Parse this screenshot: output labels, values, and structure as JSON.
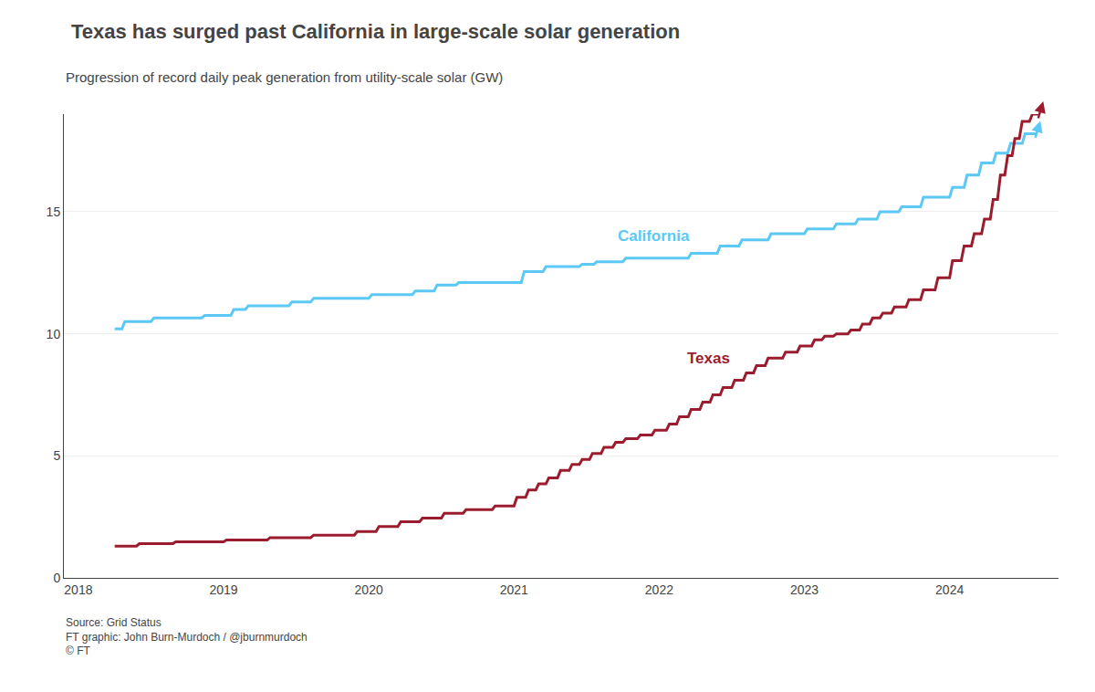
{
  "chart_data": {
    "type": "line",
    "title": "Texas has surged past California in large-scale solar generation",
    "subtitle": "Progression of record daily peak generation from utility-scale solar (GW)",
    "source": "Source: Grid Status\nFT graphic: John Burn-Murdoch / @jburnmurdoch\n© FT",
    "xlim": [
      2017.9,
      2024.75
    ],
    "xticks": [
      2018,
      2019,
      2020,
      2021,
      2022,
      2023,
      2024
    ],
    "ylim": [
      0,
      19
    ],
    "yticks": [
      0,
      5,
      10,
      15
    ],
    "grid": "y",
    "series": [
      {
        "name": "California",
        "color": "#5bc8f5",
        "x": [
          2018.25,
          2018.3,
          2018.32,
          2018.5,
          2018.52,
          2018.85,
          2018.87,
          2019.05,
          2019.07,
          2019.15,
          2019.17,
          2019.45,
          2019.47,
          2019.6,
          2019.62,
          2020.0,
          2020.02,
          2020.3,
          2020.32,
          2020.45,
          2020.47,
          2020.6,
          2020.62,
          2021.05,
          2021.07,
          2021.2,
          2021.22,
          2021.45,
          2021.47,
          2021.55,
          2021.57,
          2021.75,
          2021.77,
          2022.2,
          2022.22,
          2022.4,
          2022.42,
          2022.55,
          2022.57,
          2022.75,
          2022.77,
          2023.0,
          2023.02,
          2023.2,
          2023.22,
          2023.35,
          2023.37,
          2023.5,
          2023.52,
          2023.65,
          2023.67,
          2023.8,
          2023.82,
          2024.0,
          2024.02,
          2024.1,
          2024.12,
          2024.2,
          2024.22,
          2024.3,
          2024.32,
          2024.4,
          2024.42,
          2024.5,
          2024.52,
          2024.6
        ],
        "values": [
          10.2,
          10.2,
          10.5,
          10.5,
          10.65,
          10.65,
          10.75,
          10.75,
          11.0,
          11.0,
          11.15,
          11.15,
          11.3,
          11.3,
          11.45,
          11.45,
          11.6,
          11.6,
          11.75,
          11.75,
          12.0,
          12.0,
          12.1,
          12.1,
          12.55,
          12.55,
          12.75,
          12.75,
          12.85,
          12.85,
          12.95,
          12.95,
          13.1,
          13.1,
          13.3,
          13.3,
          13.6,
          13.6,
          13.85,
          13.85,
          14.1,
          14.1,
          14.3,
          14.3,
          14.5,
          14.5,
          14.7,
          14.7,
          15.0,
          15.0,
          15.2,
          15.2,
          15.6,
          15.6,
          16.0,
          16.0,
          16.5,
          16.5,
          17.0,
          17.0,
          17.4,
          17.4,
          17.8,
          17.8,
          18.2,
          18.2
        ]
      },
      {
        "name": "Texas",
        "color": "#9b1c2e",
        "x": [
          2018.25,
          2018.4,
          2018.42,
          2018.65,
          2018.67,
          2019.0,
          2019.02,
          2019.3,
          2019.32,
          2019.6,
          2019.62,
          2019.9,
          2019.92,
          2020.05,
          2020.07,
          2020.2,
          2020.22,
          2020.35,
          2020.37,
          2020.5,
          2020.52,
          2020.65,
          2020.67,
          2020.85,
          2020.87,
          2021.0,
          2021.02,
          2021.08,
          2021.1,
          2021.15,
          2021.17,
          2021.22,
          2021.24,
          2021.3,
          2021.32,
          2021.38,
          2021.4,
          2021.45,
          2021.47,
          2021.52,
          2021.54,
          2021.6,
          2021.62,
          2021.68,
          2021.7,
          2021.75,
          2021.77,
          2021.85,
          2021.87,
          2021.95,
          2021.97,
          2022.05,
          2022.07,
          2022.12,
          2022.14,
          2022.2,
          2022.22,
          2022.28,
          2022.3,
          2022.35,
          2022.37,
          2022.42,
          2022.44,
          2022.5,
          2022.52,
          2022.58,
          2022.6,
          2022.65,
          2022.67,
          2022.73,
          2022.75,
          2022.85,
          2022.87,
          2022.95,
          2022.97,
          2023.05,
          2023.07,
          2023.12,
          2023.14,
          2023.2,
          2023.22,
          2023.3,
          2023.32,
          2023.38,
          2023.4,
          2023.45,
          2023.47,
          2023.52,
          2023.54,
          2023.6,
          2023.62,
          2023.7,
          2023.72,
          2023.8,
          2023.82,
          2023.9,
          2023.92,
          2024.0,
          2024.02,
          2024.08,
          2024.1,
          2024.15,
          2024.17,
          2024.22,
          2024.24,
          2024.28,
          2024.3,
          2024.33,
          2024.35,
          2024.38,
          2024.4,
          2024.43,
          2024.45,
          2024.48,
          2024.5,
          2024.55,
          2024.57,
          2024.62
        ],
        "values": [
          1.3,
          1.3,
          1.4,
          1.4,
          1.48,
          1.48,
          1.55,
          1.55,
          1.65,
          1.65,
          1.75,
          1.75,
          1.9,
          1.9,
          2.1,
          2.1,
          2.3,
          2.3,
          2.45,
          2.45,
          2.65,
          2.65,
          2.8,
          2.8,
          2.95,
          2.95,
          3.3,
          3.3,
          3.6,
          3.6,
          3.85,
          3.85,
          4.1,
          4.1,
          4.4,
          4.4,
          4.65,
          4.65,
          4.85,
          4.85,
          5.1,
          5.1,
          5.35,
          5.35,
          5.55,
          5.55,
          5.7,
          5.7,
          5.85,
          5.85,
          6.05,
          6.05,
          6.3,
          6.3,
          6.6,
          6.6,
          6.9,
          6.9,
          7.2,
          7.2,
          7.5,
          7.5,
          7.8,
          7.8,
          8.1,
          8.1,
          8.4,
          8.4,
          8.7,
          8.7,
          9.0,
          9.0,
          9.25,
          9.25,
          9.5,
          9.5,
          9.75,
          9.75,
          9.9,
          9.9,
          10.0,
          10.0,
          10.15,
          10.15,
          10.4,
          10.4,
          10.65,
          10.65,
          10.85,
          10.85,
          11.1,
          11.1,
          11.4,
          11.4,
          11.8,
          11.8,
          12.3,
          12.3,
          13.0,
          13.0,
          13.6,
          13.6,
          14.1,
          14.1,
          14.7,
          14.7,
          15.5,
          15.5,
          16.5,
          16.5,
          17.3,
          17.3,
          18.0,
          18.0,
          18.7,
          18.7,
          19.0,
          19.0
        ]
      }
    ]
  }
}
